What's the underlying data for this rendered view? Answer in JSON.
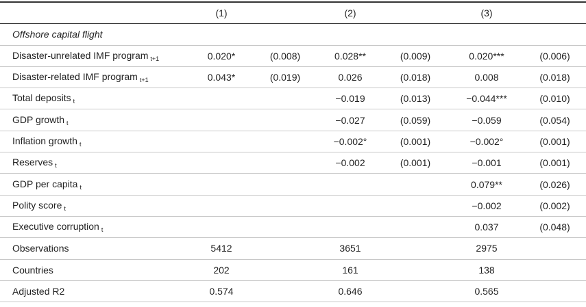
{
  "table": {
    "header": [
      "(1)",
      "(2)",
      "(3)"
    ],
    "section": "Offshore capital flight",
    "rows": [
      {
        "label": "Disaster-unrelated IMF program",
        "sub": "t+1",
        "cells": [
          "0.020*",
          "(0.008)",
          "0.028**",
          "(0.009)",
          "0.020***",
          "(0.006)"
        ]
      },
      {
        "label": "Disaster-related IMF program",
        "sub": "t+1",
        "cells": [
          "0.043*",
          "(0.019)",
          "0.026",
          "(0.018)",
          "0.008",
          "(0.018)"
        ]
      },
      {
        "label": "Total deposits",
        "sub": "t",
        "cells": [
          null,
          null,
          "−0.019",
          "(0.013)",
          "−0.044***",
          "(0.010)"
        ]
      },
      {
        "label": "GDP growth",
        "sub": "t",
        "cells": [
          null,
          null,
          "−0.027",
          "(0.059)",
          "−0.059",
          "(0.054)"
        ]
      },
      {
        "label": "Inflation growth",
        "sub": "t",
        "cells": [
          null,
          null,
          "−0.002°",
          "(0.001)",
          "−0.002°",
          "(0.001)"
        ]
      },
      {
        "label": "Reserves",
        "sub": "t",
        "cells": [
          null,
          null,
          "−0.002",
          "(0.001)",
          "−0.001",
          "(0.001)"
        ]
      },
      {
        "label": "GDP per capita",
        "sub": "t",
        "cells": [
          null,
          null,
          null,
          null,
          "0.079**",
          "(0.026)"
        ]
      },
      {
        "label": "Polity score",
        "sub": "t",
        "cells": [
          null,
          null,
          null,
          null,
          "−0.002",
          "(0.002)"
        ]
      },
      {
        "label": "Executive corruption",
        "sub": "t",
        "cells": [
          null,
          null,
          null,
          null,
          "0.037",
          "(0.048)"
        ]
      }
    ],
    "stats": [
      {
        "label": "Observations",
        "cells": [
          5412,
          3651,
          2975
        ]
      },
      {
        "label": "Countries",
        "cells": [
          202,
          161,
          138
        ]
      },
      {
        "label": "Adjusted R2",
        "cells": [
          0.574,
          0.646,
          0.565
        ]
      }
    ]
  }
}
